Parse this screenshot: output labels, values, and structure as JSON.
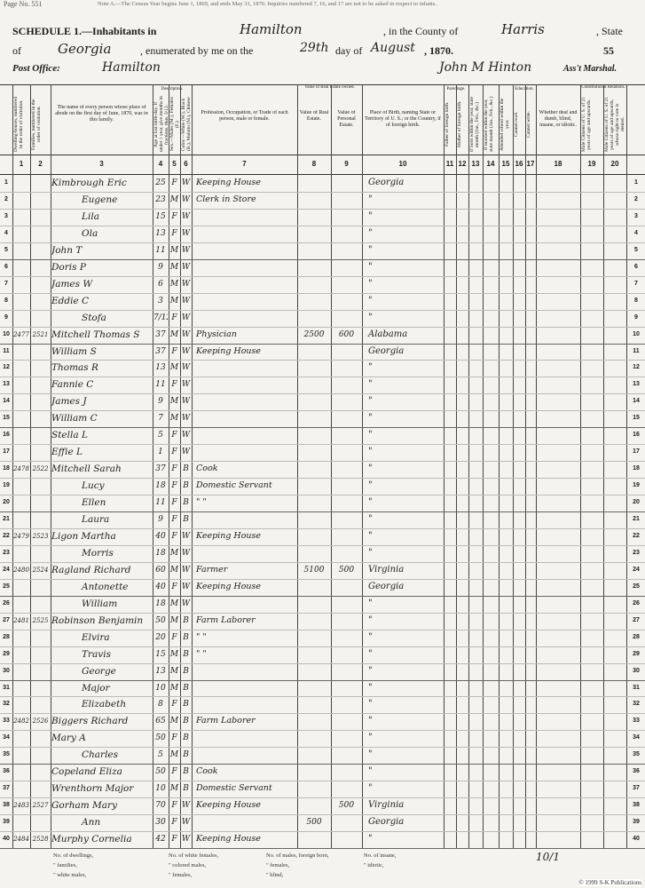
{
  "header": {
    "top_strip": "Page No. 551",
    "note": "Note A.—The Census Year begins June 1, 1869, and ends May 31, 1870. Inquiries numbered 7, 16, and 17 are not to be asked in respect to infants.",
    "schedule": "SCHEDULE 1.—Inhabitants in",
    "place": "Hamilton",
    "county_label": ", in the County of",
    "county": "Harris",
    "state_label": ", State",
    "of": "of",
    "state": "Georgia",
    "enumerated": ", enumerated by me on the",
    "day": "29th",
    "day_of": "day of",
    "month": "August",
    "year": ", 1870.",
    "page_number": "55",
    "post_office_label": "Post Office:",
    "post_office": "Hamilton",
    "marshal": "John M Hinton",
    "marshal_title": "Ass't Marshal."
  },
  "groups": {
    "description": "Description.",
    "value": "Value of Real Estate owned.",
    "parentage": "Parentage.",
    "education": "Education.",
    "constitutional": "Constitutional Relations."
  },
  "column_headers": [
    "Dwelling-houses, numbered in the order of visitation.",
    "Families, numbered in the order of visitation.",
    "The name of every person whose place of abode on the first day of June, 1870, was in this family.",
    "Age at last birth-day. If under 1 year, give months in fractions, thus, 3/12.",
    "Sex.—Males (M.), Females (F.)",
    "Color.—White (W.), Black (B.), Mulatto (M.), Chinese (C.), Indian (I.)",
    "Profession, Occupation, or Trade of each person, male or female.",
    "Value of Real Estate.",
    "Value of Personal Estate.",
    "Place of Birth, naming State or Territory of U. S.; or the Country, if of foreign birth.",
    "Father of foreign birth.",
    "Mother of foreign birth.",
    "If born within the year, state month (Jan., Feb., &c.)",
    "If married within the year, state month (Jan., Feb., &c.)",
    "Attended school within the year.",
    "Cannot read.",
    "Cannot write.",
    "Whether deaf and dumb, blind, insane, or idiotic.",
    "Male Citizens of U. S. of 21 years of age and upwards.",
    "Male Citizens of U. S. of 21 years of age and upwards, whose right to vote is denied."
  ],
  "column_numbers": [
    "1",
    "2",
    "3",
    "4",
    "5",
    "6",
    "7",
    "8",
    "9",
    "10",
    "11",
    "12",
    "13",
    "14",
    "15",
    "16",
    "17",
    "18",
    "19",
    "20"
  ],
  "rows": [
    [
      "1",
      null,
      null,
      "Kimbrough Eric",
      "25",
      "F",
      "W",
      "Keeping House",
      null,
      null,
      "Georgia"
    ],
    [
      "2",
      null,
      null,
      "Eugene",
      "23",
      "M",
      "W",
      "Clerk in Store",
      null,
      null,
      "\""
    ],
    [
      "3",
      null,
      null,
      "Lila",
      "15",
      "F",
      "W",
      null,
      null,
      null,
      "\""
    ],
    [
      "4",
      null,
      null,
      "Ola",
      "13",
      "F",
      "W",
      null,
      null,
      null,
      "\""
    ],
    [
      "5",
      null,
      null,
      "John T",
      "11",
      "M",
      "W",
      null,
      null,
      null,
      "\""
    ],
    [
      "6",
      null,
      null,
      "Doris P",
      "9",
      "M",
      "W",
      null,
      null,
      null,
      "\""
    ],
    [
      "7",
      null,
      null,
      "James W",
      "6",
      "M",
      "W",
      null,
      null,
      null,
      "\""
    ],
    [
      "8",
      null,
      null,
      "Eddie C",
      "3",
      "M",
      "W",
      null,
      null,
      null,
      "\""
    ],
    [
      "9",
      null,
      null,
      "Stofa",
      "7/12",
      "F",
      "W",
      null,
      null,
      null,
      "\""
    ],
    [
      "10",
      "2477",
      "2521",
      "Mitchell Thomas S",
      "37",
      "M",
      "W",
      "Physician",
      "2500",
      "600",
      "Alabama"
    ],
    [
      "11",
      null,
      null,
      "William S",
      "37",
      "F",
      "W",
      "Keeping House",
      null,
      null,
      "Georgia"
    ],
    [
      "12",
      null,
      null,
      "Thomas R",
      "13",
      "M",
      "W",
      null,
      null,
      null,
      "\""
    ],
    [
      "13",
      null,
      null,
      "Fannie C",
      "11",
      "F",
      "W",
      null,
      null,
      null,
      "\""
    ],
    [
      "14",
      null,
      null,
      "James J",
      "9",
      "M",
      "W",
      null,
      null,
      null,
      "\""
    ],
    [
      "15",
      null,
      null,
      "William C",
      "7",
      "M",
      "W",
      null,
      null,
      null,
      "\""
    ],
    [
      "16",
      null,
      null,
      "Stella L",
      "5",
      "F",
      "W",
      null,
      null,
      null,
      "\""
    ],
    [
      "17",
      null,
      null,
      "Effie L",
      "1",
      "F",
      "W",
      null,
      null,
      null,
      "\""
    ],
    [
      "18",
      "2478",
      "2522",
      "Mitchell Sarah",
      "37",
      "F",
      "B",
      "Cook",
      null,
      null,
      "\""
    ],
    [
      "19",
      null,
      null,
      "Lucy",
      "18",
      "F",
      "B",
      "Domestic Servant",
      null,
      null,
      "\""
    ],
    [
      "20",
      null,
      null,
      "Ellen",
      "11",
      "F",
      "B",
      "\"  \"",
      null,
      null,
      "\""
    ],
    [
      "21",
      null,
      null,
      "Laura",
      "9",
      "F",
      "B",
      null,
      null,
      null,
      "\""
    ],
    [
      "22",
      "2479",
      "2523",
      "Ligon Martha",
      "40",
      "F",
      "W",
      "Keeping House",
      null,
      null,
      "\""
    ],
    [
      "23",
      null,
      null,
      "Morris",
      "18",
      "M",
      "W",
      null,
      null,
      null,
      "\""
    ],
    [
      "24",
      "2480",
      "2524",
      "Ragland Richard",
      "60",
      "M",
      "W",
      "Farmer",
      "5100",
      "500",
      "Virginia"
    ],
    [
      "25",
      null,
      null,
      "Antonette",
      "40",
      "F",
      "W",
      "Keeping House",
      null,
      null,
      "Georgia"
    ],
    [
      "26",
      null,
      null,
      "William",
      "18",
      "M",
      "W",
      null,
      null,
      null,
      "\""
    ],
    [
      "27",
      "2481",
      "2525",
      "Robinson Benjamin",
      "50",
      "M",
      "B",
      "Farm Laborer",
      null,
      null,
      "\""
    ],
    [
      "28",
      null,
      null,
      "Elvira",
      "20",
      "F",
      "B",
      "\"  \"",
      null,
      null,
      "\""
    ],
    [
      "29",
      null,
      null,
      "Travis",
      "15",
      "M",
      "B",
      "\"  \"",
      null,
      null,
      "\""
    ],
    [
      "30",
      null,
      null,
      "George",
      "13",
      "M",
      "B",
      null,
      null,
      null,
      "\""
    ],
    [
      "31",
      null,
      null,
      "Major",
      "10",
      "M",
      "B",
      null,
      null,
      null,
      "\""
    ],
    [
      "32",
      null,
      null,
      "Elizabeth",
      "8",
      "F",
      "B",
      null,
      null,
      null,
      "\""
    ],
    [
      "33",
      "2482",
      "2526",
      "Biggers Richard",
      "65",
      "M",
      "B",
      "Farm Laborer",
      null,
      null,
      "\""
    ],
    [
      "34",
      null,
      null,
      "Mary A",
      "50",
      "F",
      "B",
      null,
      null,
      null,
      "\""
    ],
    [
      "35",
      null,
      null,
      "Charles",
      "5",
      "M",
      "B",
      null,
      null,
      null,
      "\""
    ],
    [
      "36",
      null,
      null,
      "Copeland Eliza",
      "50",
      "F",
      "B",
      "Cook",
      null,
      null,
      "\""
    ],
    [
      "37",
      null,
      null,
      "Wrenthorn Major",
      "10",
      "M",
      "B",
      "Domestic Servant",
      null,
      null,
      "\""
    ],
    [
      "38",
      "2483",
      "2527",
      "Gorham Mary",
      "70",
      "F",
      "W",
      "Keeping House",
      null,
      "500",
      "Virginia"
    ],
    [
      "39",
      null,
      null,
      "Ann",
      "30",
      "F",
      "W",
      null,
      "500",
      null,
      "Georgia"
    ],
    [
      "40",
      "2484",
      "2528",
      "Murphy Cornelia",
      "42",
      "F",
      "W",
      "Keeping House",
      null,
      null,
      "\""
    ]
  ],
  "footer": {
    "col1": [
      "No. of dwellings,",
      "\" families,",
      "\" white males,"
    ],
    "col2": [
      "No. of white females,",
      "\" colored males,",
      "\" females,"
    ],
    "col3": [
      "No. of males, foreign born,",
      "\" females,",
      "\" blind,"
    ],
    "col4": [
      "No. of insane,",
      "\" idiotic,"
    ],
    "tally": "10/1",
    "copyright": "© 1999 S-K Publications"
  }
}
